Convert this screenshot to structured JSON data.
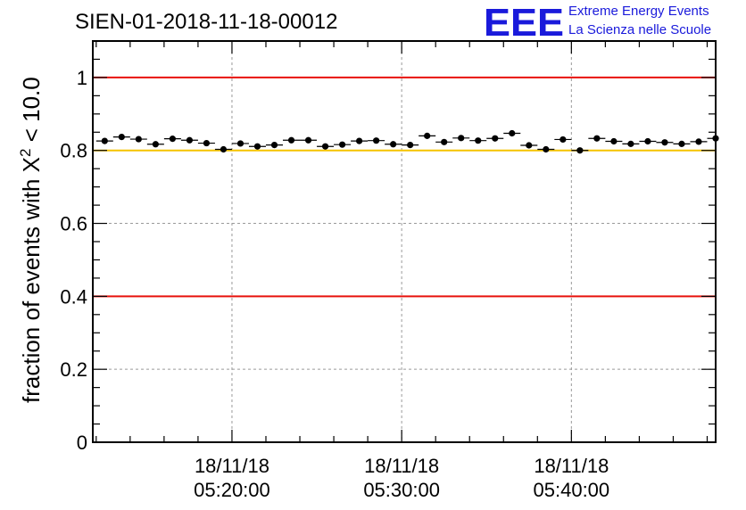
{
  "colors": {
    "limit_line": "#e8120c",
    "reference_line": "#f5c400",
    "grid": "#9a9a9a",
    "marker": "#000000",
    "logo": "#1a1adb"
  },
  "logo": {
    "mark": "EEE",
    "line1": "Extreme Energy Events",
    "line2": "La Scienza nelle Scuole"
  },
  "chart_data": {
    "type": "scatter",
    "title": "SIEN-01-2018-11-18-00012",
    "xlabel": "",
    "ylabel_prefix": "fraction of events with ",
    "ylabel_symbol": "X",
    "ylabel_superscript": "2",
    "ylabel_suffix": " < 10.0",
    "ylim": [
      0,
      1.1
    ],
    "xlim_minutes": [
      11.8,
      48.5
    ],
    "yticks": [
      "0",
      "0.2",
      "0.4",
      "0.6",
      "0.8",
      "1"
    ],
    "ytick_values": [
      0,
      0.2,
      0.4,
      0.6,
      0.8,
      1.0
    ],
    "xticks": [
      {
        "minutes": 20,
        "date": "18/11/18",
        "time": "05:20:00"
      },
      {
        "minutes": 30,
        "date": "18/11/18",
        "time": "05:30:00"
      },
      {
        "minutes": 40,
        "date": "18/11/18",
        "time": "05:40:00"
      }
    ],
    "hlines": [
      {
        "y": 1.0,
        "role": "limit"
      },
      {
        "y": 0.8,
        "role": "reference"
      },
      {
        "y": 0.4,
        "role": "limit"
      }
    ],
    "grid": true,
    "bin_width_minutes": 1,
    "series": [
      {
        "name": "fraction",
        "x_minutes": [
          12.5,
          13.5,
          14.5,
          15.5,
          16.5,
          17.5,
          18.5,
          19.5,
          20.5,
          21.5,
          22.5,
          23.5,
          24.5,
          25.5,
          26.5,
          27.5,
          28.5,
          29.5,
          30.5,
          31.5,
          32.5,
          33.5,
          34.5,
          35.5,
          36.5,
          37.5,
          38.5,
          39.5,
          40.5,
          41.5,
          42.5,
          43.5,
          44.5,
          45.5,
          46.5,
          47.5,
          48.5
        ],
        "values": [
          0.826,
          0.837,
          0.831,
          0.817,
          0.832,
          0.828,
          0.82,
          0.803,
          0.819,
          0.811,
          0.815,
          0.828,
          0.828,
          0.811,
          0.816,
          0.826,
          0.827,
          0.817,
          0.815,
          0.84,
          0.823,
          0.834,
          0.827,
          0.833,
          0.847,
          0.814,
          0.803,
          0.83,
          0.8,
          0.833,
          0.825,
          0.818,
          0.825,
          0.822,
          0.818,
          0.824,
          0.833
        ],
        "errors": [
          0.006,
          0.006,
          0.006,
          0.006,
          0.006,
          0.006,
          0.006,
          0.006,
          0.006,
          0.006,
          0.006,
          0.006,
          0.006,
          0.006,
          0.006,
          0.006,
          0.006,
          0.006,
          0.006,
          0.006,
          0.006,
          0.006,
          0.006,
          0.006,
          0.006,
          0.006,
          0.006,
          0.006,
          0.006,
          0.006,
          0.006,
          0.006,
          0.006,
          0.006,
          0.006,
          0.006,
          0.006
        ]
      }
    ]
  }
}
